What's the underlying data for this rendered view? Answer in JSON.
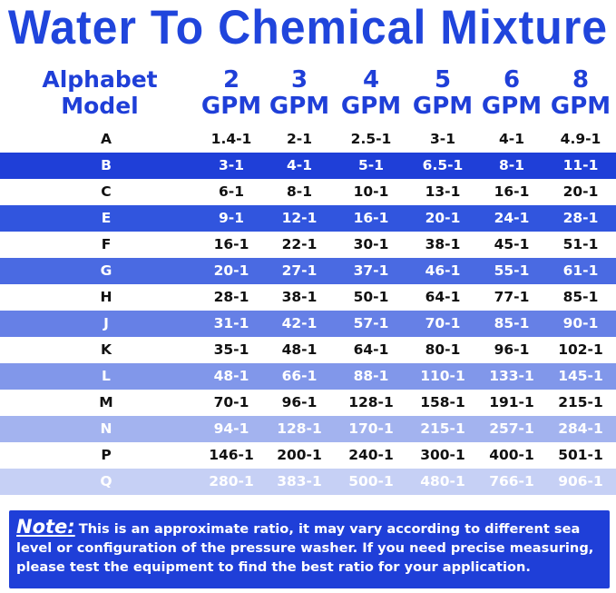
{
  "title": "Water To Chemical Mixture",
  "header": {
    "model_line1": "Alphabet",
    "model_line2": "Model",
    "columns": [
      {
        "num": "2",
        "unit": "GPM"
      },
      {
        "num": "3",
        "unit": "GPM"
      },
      {
        "num": "4",
        "unit": "GPM"
      },
      {
        "num": "5",
        "unit": "GPM"
      },
      {
        "num": "6",
        "unit": "GPM"
      },
      {
        "num": "8",
        "unit": "GPM"
      }
    ]
  },
  "rows": [
    {
      "model": "A",
      "values": [
        "1.4-1",
        "2-1",
        "2.5-1",
        "3-1",
        "4-1",
        "4.9-1"
      ],
      "bg": "#ffffff",
      "color": "#111111"
    },
    {
      "model": "B",
      "values": [
        "3-1",
        "4-1",
        "5-1",
        "6.5-1",
        "8-1",
        "11-1"
      ],
      "bg": "#1f3fd8",
      "color": "#ffffff"
    },
    {
      "model": "C",
      "values": [
        "6-1",
        "8-1",
        "10-1",
        "13-1",
        "16-1",
        "20-1"
      ],
      "bg": "#ffffff",
      "color": "#111111"
    },
    {
      "model": "E",
      "values": [
        "9-1",
        "12-1",
        "16-1",
        "20-1",
        "24-1",
        "28-1"
      ],
      "bg": "#3155de",
      "color": "#ffffff"
    },
    {
      "model": "F",
      "values": [
        "16-1",
        "22-1",
        "30-1",
        "38-1",
        "45-1",
        "51-1"
      ],
      "bg": "#ffffff",
      "color": "#111111"
    },
    {
      "model": "G",
      "values": [
        "20-1",
        "27-1",
        "37-1",
        "46-1",
        "55-1",
        "61-1"
      ],
      "bg": "#4a6ae2",
      "color": "#ffffff"
    },
    {
      "model": "H",
      "values": [
        "28-1",
        "38-1",
        "50-1",
        "64-1",
        "77-1",
        "85-1"
      ],
      "bg": "#ffffff",
      "color": "#111111"
    },
    {
      "model": "J",
      "values": [
        "31-1",
        "42-1",
        "57-1",
        "70-1",
        "85-1",
        "90-1"
      ],
      "bg": "#6680e6",
      "color": "#ffffff"
    },
    {
      "model": "K",
      "values": [
        "35-1",
        "48-1",
        "64-1",
        "80-1",
        "96-1",
        "102-1"
      ],
      "bg": "#ffffff",
      "color": "#111111"
    },
    {
      "model": "L",
      "values": [
        "48-1",
        "66-1",
        "88-1",
        "110-1",
        "133-1",
        "145-1"
      ],
      "bg": "#8197ea",
      "color": "#ffffff"
    },
    {
      "model": "M",
      "values": [
        "70-1",
        "96-1",
        "128-1",
        "158-1",
        "191-1",
        "215-1"
      ],
      "bg": "#ffffff",
      "color": "#111111"
    },
    {
      "model": "N",
      "values": [
        "94-1",
        "128-1",
        "170-1",
        "215-1",
        "257-1",
        "284-1"
      ],
      "bg": "#a3b3ef",
      "color": "#ffffff"
    },
    {
      "model": "P",
      "values": [
        "146-1",
        "200-1",
        "240-1",
        "300-1",
        "400-1",
        "501-1"
      ],
      "bg": "#ffffff",
      "color": "#111111"
    },
    {
      "model": "Q",
      "values": [
        "280-1",
        "383-1",
        "500-1",
        "480-1",
        "766-1",
        "906-1"
      ],
      "bg": "#c6d0f5",
      "color": "#ffffff"
    }
  ],
  "note": {
    "label": "Note:",
    "text": "This is an approximate ratio, it may vary according to different sea level or configuration of the pressure washer. If you need precise measuring, please test the equipment to find the best ratio for your application."
  },
  "colors": {
    "brand_blue": "#1f3fd8",
    "title_blue": "#2045dc"
  }
}
